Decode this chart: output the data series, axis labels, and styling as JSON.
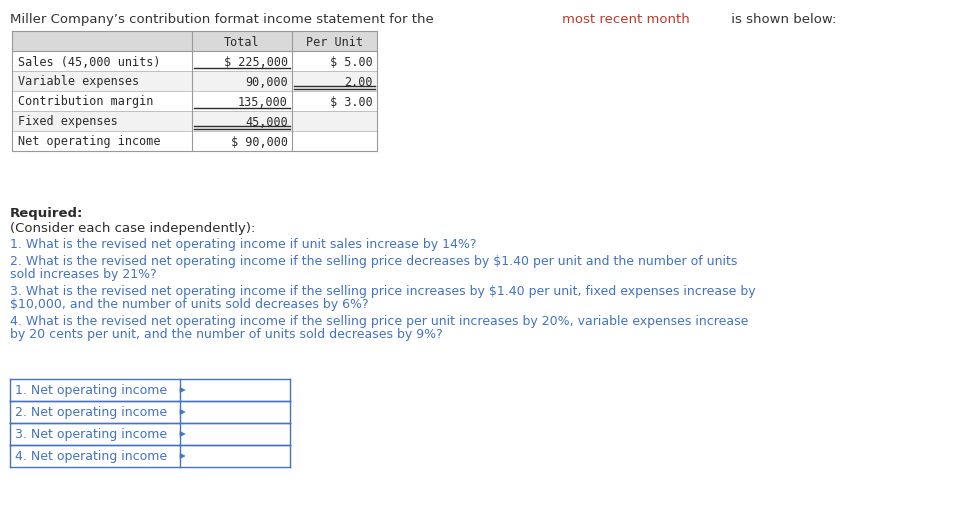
{
  "title_parts": [
    {
      "text": "Miller Company’s contribution format income statement for the ",
      "color": "#333333"
    },
    {
      "text": "most recent month",
      "color": "#c0392b"
    },
    {
      "text": " is shown below:",
      "color": "#333333"
    }
  ],
  "table_header": [
    "",
    "Total",
    "Per Unit"
  ],
  "table_rows": [
    [
      "Sales (45,000 units)",
      "$ 225,000",
      "$ 5.00"
    ],
    [
      "Variable expenses",
      "90,000",
      "2.00"
    ],
    [
      "Contribution margin",
      "135,000",
      "$ 3.00"
    ],
    [
      "Fixed expenses",
      "45,000",
      ""
    ],
    [
      "Net operating income",
      "$ 90,000",
      ""
    ]
  ],
  "required_label": "Required:",
  "consider_label": "(Consider each case independently):",
  "q1": "1. What is the revised net operating income if unit sales increase by 14%?",
  "q2": "2. What is the revised net operating income if the selling price decreases by $1.40 per unit and the number of units sold increases by 21%?",
  "q3": "3. What is the revised net operating income if the selling price increases by $1.40 per unit, fixed expenses increase by $10,000, and the number of units sold decreases by 6%?",
  "q4": "4. What is the revised net operating income if the selling price per unit increases by 20%, variable expenses increase by 20 cents per unit, and the number of units sold decreases by 9%?",
  "answer_labels": [
    "1. Net operating income",
    "2. Net operating income",
    "3. Net operating income",
    "4. Net operating income"
  ],
  "bg_color": "#ffffff",
  "table_header_bg": "#d9d9d9",
  "table_row_bg_even": "#f2f2f2",
  "table_row_bg_odd": "#ffffff",
  "table_border_color": "#999999",
  "answer_border_color": "#4472c4",
  "text_color_blue": "#4472c4",
  "text_color_dark": "#2b2b2b",
  "text_color_red": "#c0392b",
  "mono_font": "DejaVu Sans Mono",
  "sans_font": "DejaVu Sans"
}
